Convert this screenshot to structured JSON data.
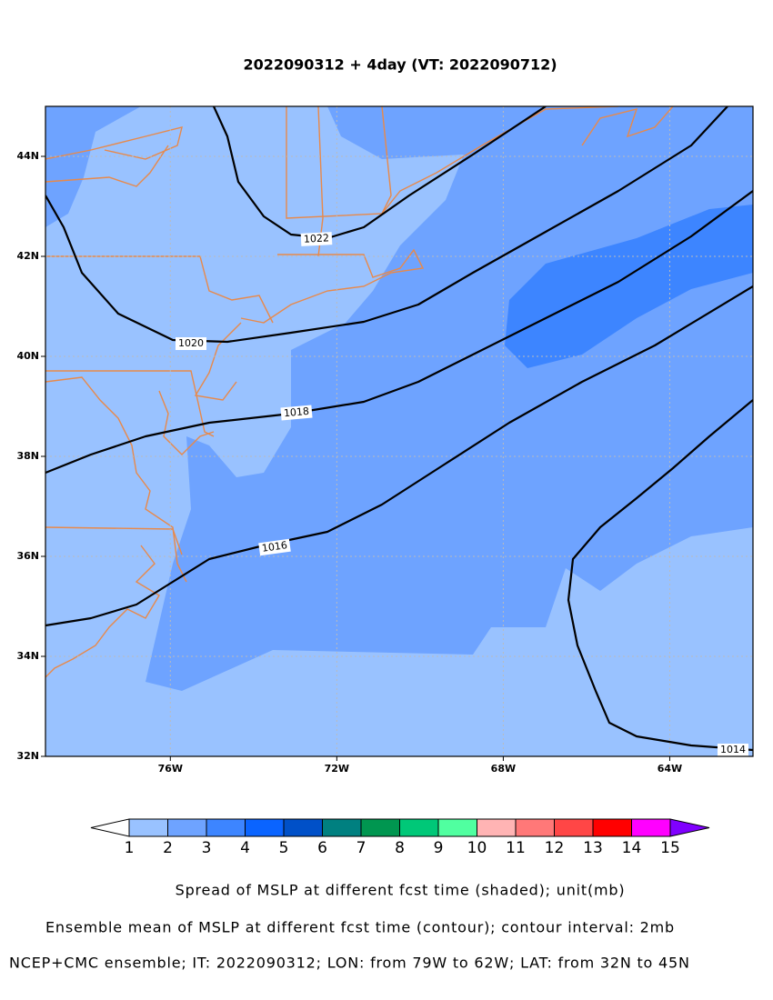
{
  "title": "2022090312 + 4day (VT: 2022090712)",
  "map": {
    "xlim": [
      -79,
      -62
    ],
    "ylim": [
      32,
      45
    ],
    "xticks": [
      {
        "value": -76,
        "label": "76W"
      },
      {
        "value": -72,
        "label": "72W"
      },
      {
        "value": -68,
        "label": "68W"
      },
      {
        "value": -64,
        "label": "64W"
      }
    ],
    "yticks": [
      {
        "value": 32,
        "label": "32N"
      },
      {
        "value": 34,
        "label": "34N"
      },
      {
        "value": 36,
        "label": "36N"
      },
      {
        "value": 38,
        "label": "38N"
      },
      {
        "value": 40,
        "label": "40N"
      },
      {
        "value": 42,
        "label": "42N"
      },
      {
        "value": 44,
        "label": "44N"
      }
    ],
    "grid": true
  },
  "contours": [
    1022,
    1020,
    1018,
    1016,
    1014
  ],
  "colorbar": {
    "levels": [
      1,
      2,
      3,
      4,
      5,
      6,
      7,
      8,
      9,
      10,
      11,
      12,
      13,
      14,
      15
    ],
    "colors": [
      "#ffffff",
      "#99c2ff",
      "#6ea3ff",
      "#3d85ff",
      "#0a64ff",
      "#0050c8",
      "#008080",
      "#009650",
      "#00c878",
      "#50ffa0",
      "#ffb4b4",
      "#ff7878",
      "#ff4646",
      "#ff0000",
      "#ff00ff",
      "#8000ff"
    ]
  },
  "captions": [
    "Spread of MSLP at different fcst time (shaded); unit(mb)",
    "Ensemble mean of MSLP at different fcst time (contour); contour interval: 2mb",
    "NCEP+CMC ensemble; IT: 2022090312; LON: from 79W to 62W; LAT: from 32N to 45N"
  ]
}
